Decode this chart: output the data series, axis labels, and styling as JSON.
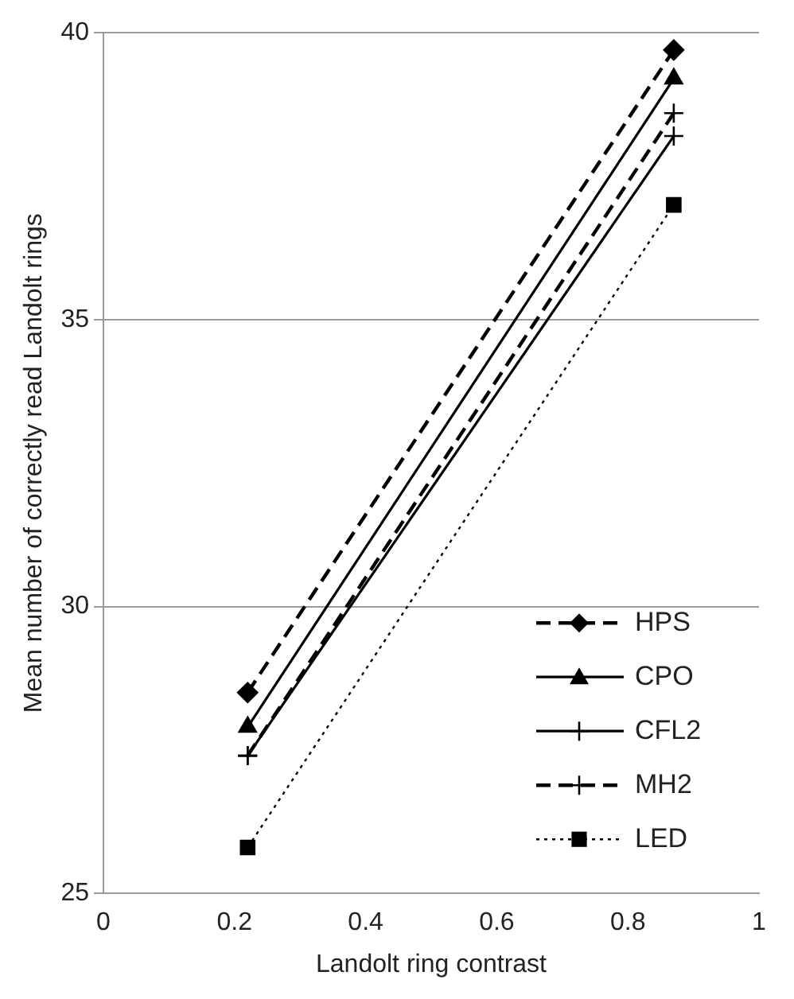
{
  "chart_data": {
    "type": "line",
    "xlabel": "Landolt ring contrast",
    "ylabel": "Mean number of correctly read Landolt rings",
    "x": [
      0.22,
      0.87
    ],
    "series": [
      {
        "name": "HPS",
        "color": "#000000",
        "values": [
          28.5,
          39.7
        ],
        "marker": "diamond",
        "line_style": "dashed"
      },
      {
        "name": "CPO",
        "color": "#000000",
        "values": [
          27.9,
          39.2
        ],
        "marker": "triangle",
        "line_style": "solid"
      },
      {
        "name": "CFL2",
        "color": "#000000",
        "values": [
          27.4,
          38.2
        ],
        "marker": "cross",
        "line_style": "solid"
      },
      {
        "name": "MH2",
        "color": "#000000",
        "values": [
          27.4,
          38.6
        ],
        "marker": "cross",
        "line_style": "dashed"
      },
      {
        "name": "LED",
        "color": "#000000",
        "values": [
          25.8,
          37.0
        ],
        "marker": "square",
        "line_style": "dotted"
      }
    ],
    "xlim": [
      0,
      1
    ],
    "xticks": [
      0,
      0.2,
      0.4,
      0.6,
      0.8,
      1
    ],
    "ylim": [
      25,
      40
    ],
    "yticks": [
      25,
      30,
      35,
      40
    ],
    "grid": "y",
    "legend": "bottom right"
  }
}
